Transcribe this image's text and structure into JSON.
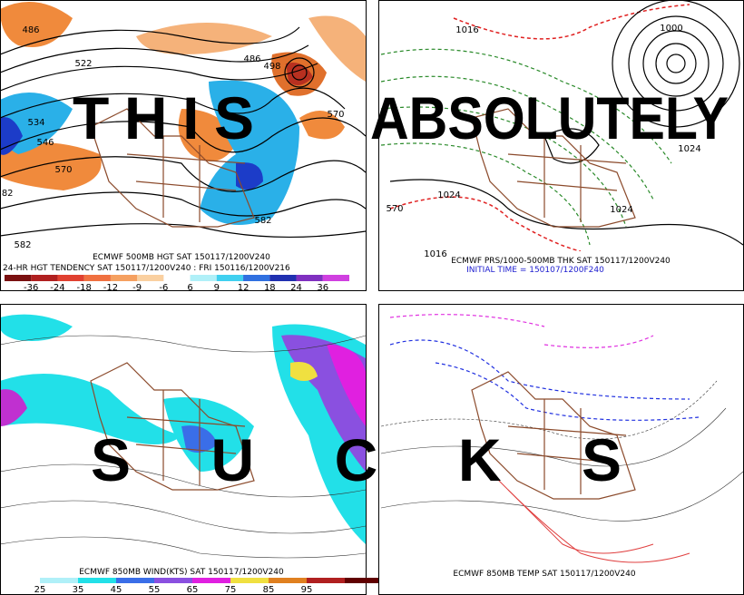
{
  "panels": [
    {
      "captions": [
        "ECMWF 500MB HGT SAT 150117/1200V240",
        "24-HR HGT TENDENCY SAT 150117/1200V240 : FRI 150116/1200V216"
      ],
      "labels": [
        "486",
        "522",
        "534",
        "546",
        "570",
        "582",
        "582",
        "486",
        "498",
        "570",
        "582"
      ],
      "colorbar": [
        -36,
        -24,
        -18,
        -12,
        -9,
        -6,
        6,
        9,
        12,
        18,
        24,
        36
      ]
    },
    {
      "captions": [
        "ECMWF PRS/1000-500MB THK SAT 150117/1200V240",
        "INITIAL TIME = 150107/1200F240"
      ],
      "labels": [
        "1016",
        "1024",
        "1016",
        "570",
        "1000",
        "1024",
        "1024"
      ]
    },
    {
      "captions": [
        "ECMWF 850MB WIND(KTS) SAT 150117/1200V240"
      ],
      "colorbar": [
        25,
        35,
        45,
        55,
        65,
        75,
        85,
        95
      ]
    },
    {
      "captions": [
        "ECMWF 850MB TEMP SAT 150117/1200V240"
      ]
    }
  ],
  "overlay": [
    "THIS",
    "ABSOLUTELY",
    "SUCKS"
  ]
}
